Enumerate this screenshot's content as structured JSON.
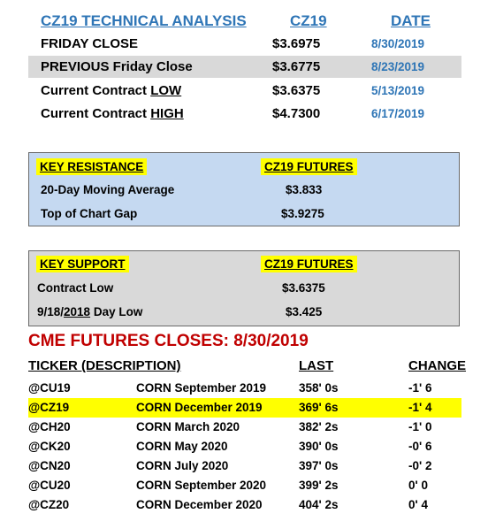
{
  "summary": {
    "headers": {
      "title": "CZ19 TECHNICAL ANALYSIS",
      "contract": "CZ19",
      "date": "DATE"
    },
    "rows": [
      {
        "label": "FRIDAY CLOSE",
        "value": "$3.6975",
        "date": "8/30/2019"
      },
      {
        "label": "PREVIOUS Friday Close",
        "value": "$3.6775",
        "date": "8/23/2019"
      },
      {
        "label_prefix": "Current Contract ",
        "label_em": "LOW",
        "value": "$3.6375",
        "date": "5/13/2019"
      },
      {
        "label_prefix": "Current Contract ",
        "label_em": "HIGH",
        "value": "$4.7300",
        "date": "6/17/2019"
      }
    ]
  },
  "resistance": {
    "title": "KEY RESISTANCE",
    "col_header": "CZ19 FUTURES",
    "items": [
      {
        "label": "20-Day Moving Average",
        "value": "$3.833"
      },
      {
        "label": "Top of Chart Gap",
        "value": "$3.9275"
      }
    ]
  },
  "support": {
    "title": "KEY SUPPORT",
    "col_header": "CZ19 FUTURES",
    "items": [
      {
        "label": "Contract Low",
        "value": "$3.6375"
      },
      {
        "label_prefix": "9/18/",
        "label_em": "2018",
        "label_suffix": " Day Low",
        "value": "$3.425"
      }
    ]
  },
  "closes": {
    "title": "CME FUTURES CLOSES:  8/30/2019",
    "headers": {
      "ticker": "TICKER (DESCRIPTION)",
      "last": "LAST",
      "change": "CHANGE"
    },
    "rows": [
      {
        "ticker": "@CU19",
        "desc": "CORN September 2019",
        "last": "358' 0s",
        "change": "-1' 6"
      },
      {
        "ticker": "@CZ19",
        "desc": "CORN December 2019",
        "last": "369' 6s",
        "change": "-1' 4"
      },
      {
        "ticker": "@CH20",
        "desc": "CORN March 2020",
        "last": "382' 2s",
        "change": "-1' 0"
      },
      {
        "ticker": "@CK20",
        "desc": "CORN May 2020",
        "last": "390' 0s",
        "change": "-0' 6"
      },
      {
        "ticker": "@CN20",
        "desc": "CORN July 2020",
        "last": "397' 0s",
        "change": "-0' 2"
      },
      {
        "ticker": "@CU20",
        "desc": "CORN September 2020",
        "last": "399' 2s",
        "change": "0' 0"
      },
      {
        "ticker": "@CZ20",
        "desc": "CORN December 2020",
        "last": "404' 2s",
        "change": "0' 4"
      }
    ],
    "highlight_color": "#ffff00"
  },
  "colors": {
    "accent_blue": "#2e75b6",
    "title_red": "#c00000",
    "resistance_bg": "#c5d9f1",
    "support_bg": "#d9d9d9"
  }
}
